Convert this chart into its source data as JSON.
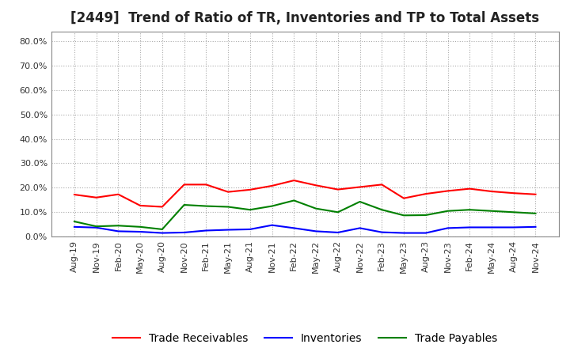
{
  "title": "[2449]  Trend of Ratio of TR, Inventories and TP to Total Assets",
  "x_labels": [
    "Aug-19",
    "Nov-19",
    "Feb-20",
    "May-20",
    "Aug-20",
    "Nov-20",
    "Feb-21",
    "May-21",
    "Aug-21",
    "Nov-21",
    "Feb-22",
    "May-22",
    "Aug-22",
    "Nov-22",
    "Feb-23",
    "May-23",
    "Aug-23",
    "Nov-23",
    "Feb-24",
    "May-24",
    "Aug-24",
    "Nov-24"
  ],
  "trade_receivables": [
    0.172,
    0.16,
    0.173,
    0.127,
    0.122,
    0.213,
    0.213,
    0.183,
    0.192,
    0.208,
    0.23,
    0.21,
    0.193,
    0.203,
    0.213,
    0.157,
    0.175,
    0.187,
    0.196,
    0.185,
    0.178,
    0.173
  ],
  "inventories": [
    0.04,
    0.037,
    0.022,
    0.02,
    0.015,
    0.017,
    0.025,
    0.028,
    0.03,
    0.047,
    0.035,
    0.022,
    0.017,
    0.035,
    0.018,
    0.015,
    0.015,
    0.035,
    0.038,
    0.038,
    0.038,
    0.04
  ],
  "trade_payables": [
    0.062,
    0.042,
    0.045,
    0.04,
    0.03,
    0.13,
    0.125,
    0.122,
    0.11,
    0.125,
    0.148,
    0.115,
    0.1,
    0.143,
    0.11,
    0.087,
    0.088,
    0.105,
    0.11,
    0.105,
    0.1,
    0.095
  ],
  "ylim": [
    0.0,
    0.84
  ],
  "yticks": [
    0.0,
    0.1,
    0.2,
    0.3,
    0.4,
    0.5,
    0.6,
    0.7,
    0.8
  ],
  "tr_color": "#FF0000",
  "inv_color": "#0000FF",
  "tp_color": "#008000",
  "legend_labels": [
    "Trade Receivables",
    "Inventories",
    "Trade Payables"
  ],
  "grid_color": "#AAAAAA",
  "background_color": "#FFFFFF",
  "plot_bg_color": "#FFFFFF",
  "title_fontsize": 12,
  "tick_fontsize": 8,
  "legend_fontsize": 10,
  "line_width": 1.5
}
